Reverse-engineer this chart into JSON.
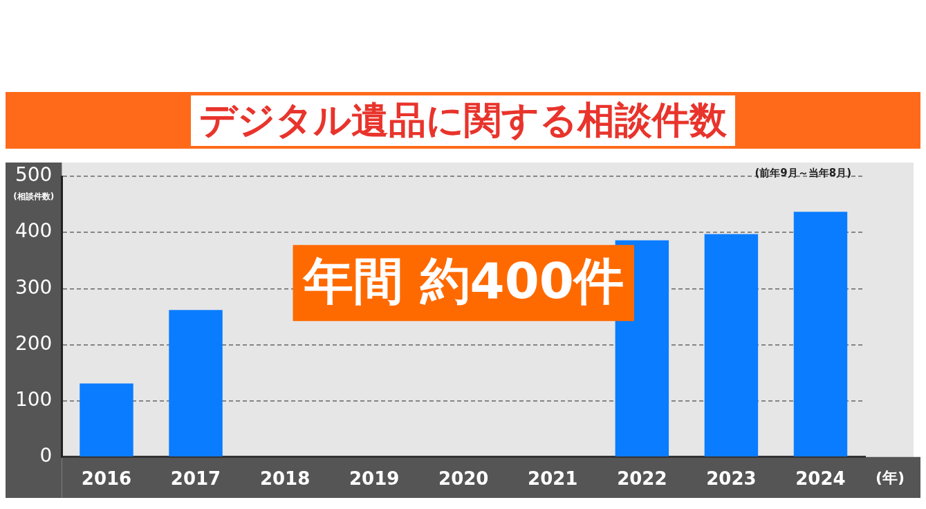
{
  "chart_data": {
    "type": "bar",
    "title": "デジタル遺品に関する相談件数",
    "xlabel": "(年)",
    "ylabel": "(相談件数)",
    "categories": [
      "2016",
      "2017",
      "2018",
      "2019",
      "2020",
      "2021",
      "2022",
      "2023",
      "2024"
    ],
    "values": [
      131,
      262,
      null,
      null,
      null,
      null,
      386,
      397,
      437
    ],
    "color": "#0a7cff",
    "ylim": [
      0,
      500
    ],
    "yticks": [
      0,
      100,
      200,
      300,
      400,
      500
    ],
    "grid": "y",
    "legend": false,
    "annotations": [
      "(前年9月～当年8月)",
      "年間 約400件"
    ]
  }
}
